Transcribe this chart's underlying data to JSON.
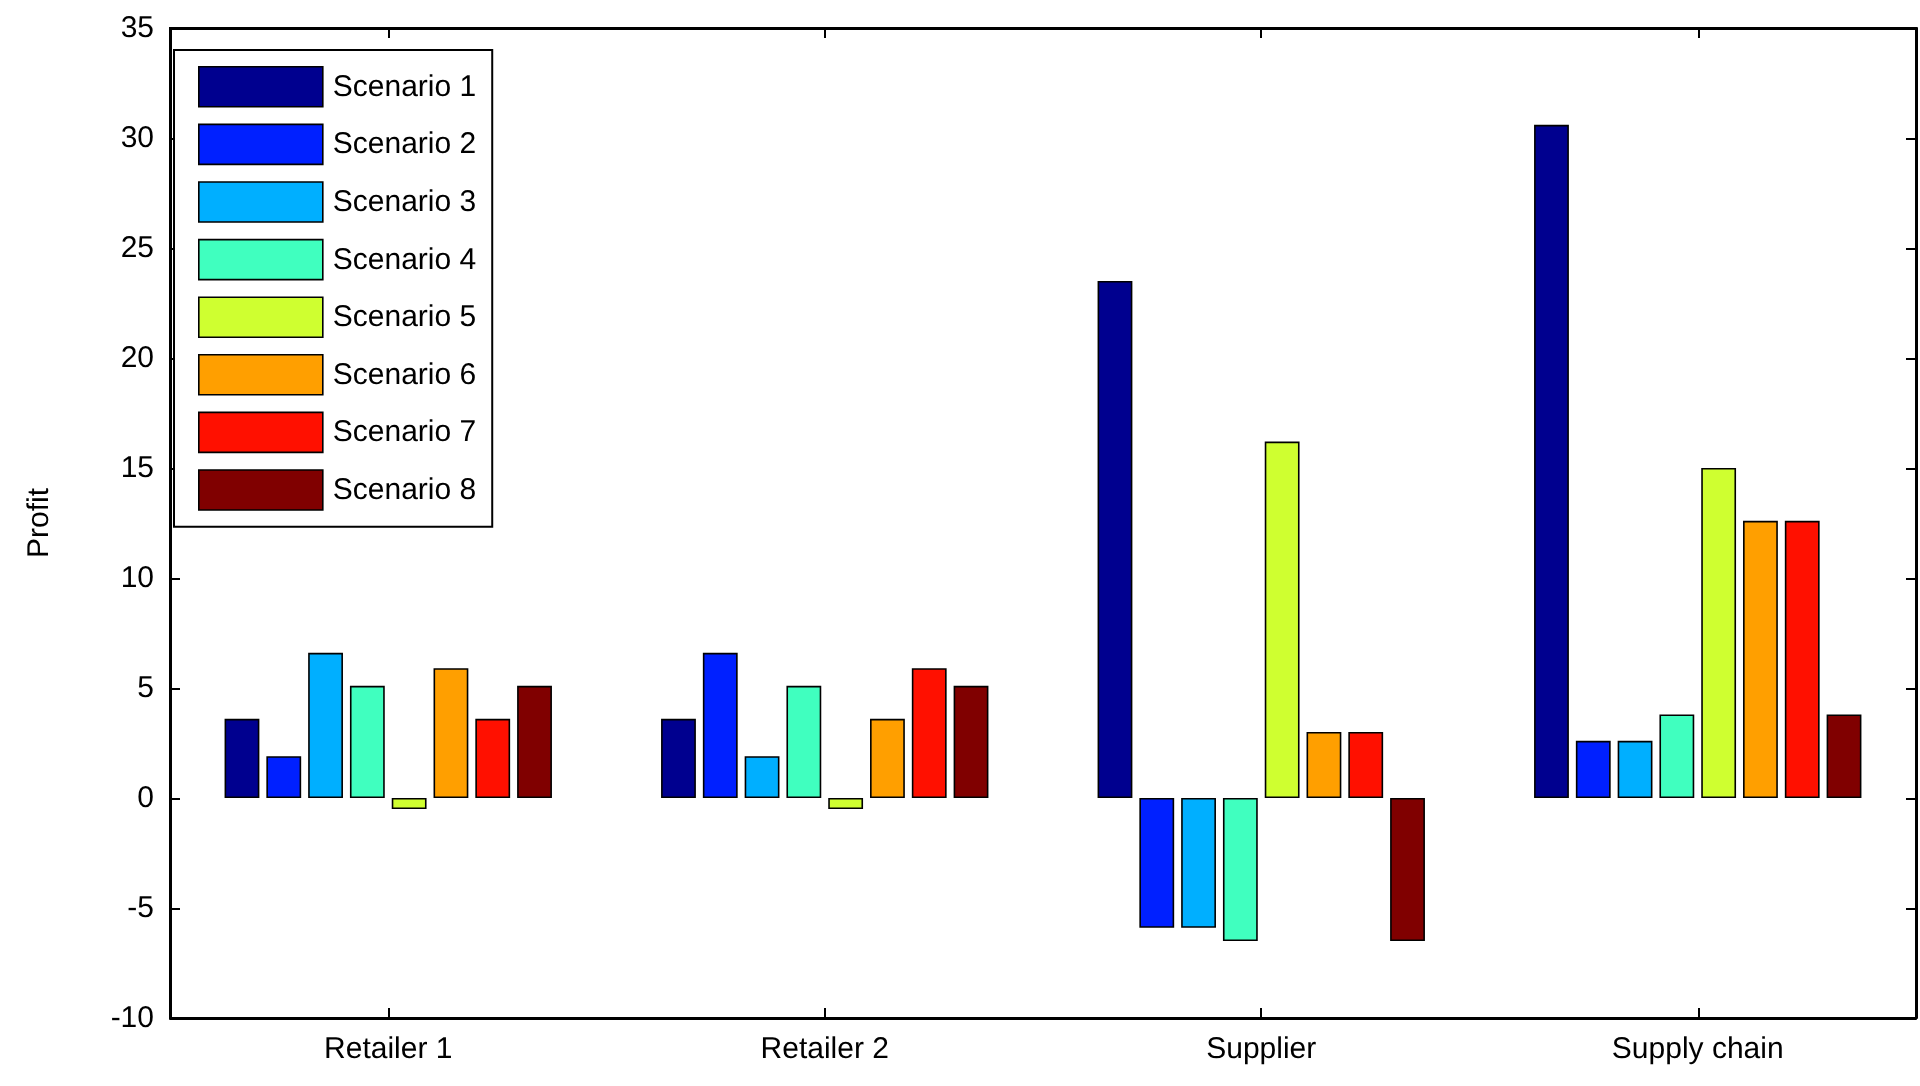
{
  "chart_data": {
    "type": "bar",
    "ylabel": "Profit",
    "categories": [
      "Retailer 1",
      "Retailer 2",
      "Supplier",
      "Supply chain"
    ],
    "series": [
      {
        "name": "Scenario 1",
        "color": "#00008f",
        "values": [
          3.6,
          3.6,
          23.5,
          30.6
        ]
      },
      {
        "name": "Scenario 2",
        "color": "#0020ff",
        "values": [
          1.9,
          6.6,
          -5.9,
          2.6
        ]
      },
      {
        "name": "Scenario 3",
        "color": "#00afff",
        "values": [
          6.6,
          1.9,
          -5.9,
          2.6
        ]
      },
      {
        "name": "Scenario 4",
        "color": "#40ffbf",
        "values": [
          5.1,
          5.1,
          -6.5,
          3.8
        ]
      },
      {
        "name": "Scenario 5",
        "color": "#cfff30",
        "values": [
          -0.5,
          -0.5,
          16.2,
          15.0
        ]
      },
      {
        "name": "Scenario 6",
        "color": "#ff9f00",
        "values": [
          5.9,
          3.6,
          3.0,
          12.6
        ]
      },
      {
        "name": "Scenario 7",
        "color": "#ff1000",
        "values": [
          3.6,
          5.9,
          3.0,
          12.6
        ]
      },
      {
        "name": "Scenario 8",
        "color": "#800000",
        "values": [
          5.1,
          5.1,
          -6.5,
          3.8
        ]
      }
    ],
    "ylim": [
      -10,
      35
    ],
    "yticks": [
      -10,
      -5,
      0,
      5,
      10,
      15,
      20,
      25,
      30,
      35
    ],
    "grid": false,
    "legend": "top left"
  }
}
